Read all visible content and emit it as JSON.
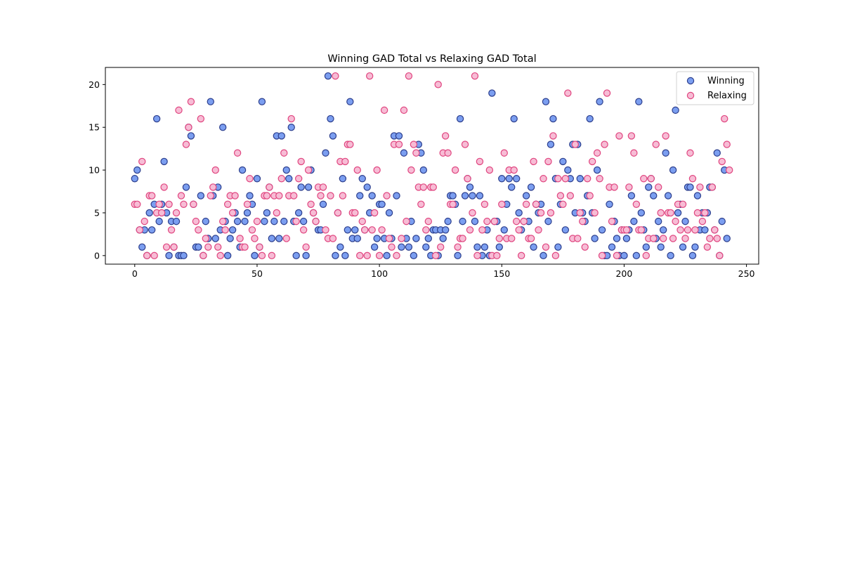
{
  "chart_data": {
    "type": "scatter",
    "title": "Winning GAD Total vs Relaxing GAD Total",
    "xlabel": "",
    "ylabel": "",
    "xlim": [
      -12,
      255
    ],
    "ylim": [
      -1,
      22
    ],
    "xticks": [
      0,
      50,
      100,
      150,
      200,
      250
    ],
    "yticks": [
      0,
      5,
      10,
      15,
      20
    ],
    "grid": false,
    "legend_position": "top-right",
    "series": [
      {
        "name": "Winning",
        "fill": "#7b9ef0",
        "edge": "#2c3e8c",
        "values": [
          9,
          10,
          3,
          1,
          3,
          0,
          5,
          3,
          6,
          16,
          4,
          6,
          11,
          5,
          0,
          4,
          1,
          4,
          0,
          0,
          0,
          8,
          15,
          14,
          6,
          1,
          1,
          7,
          0,
          4,
          2,
          18,
          7,
          2,
          8,
          3,
          15,
          4,
          0,
          2,
          3,
          5,
          4,
          1,
          10,
          4,
          5,
          7,
          6,
          0,
          9,
          1,
          18,
          4,
          5,
          8,
          2,
          4,
          14,
          2,
          14,
          4,
          10,
          9,
          15,
          4,
          0,
          5,
          8,
          4,
          0,
          8,
          10,
          5,
          4,
          3,
          3,
          6,
          12,
          21,
          16,
          14,
          0,
          5,
          1,
          9,
          0,
          3,
          18,
          2,
          3,
          2,
          7,
          9,
          3,
          8,
          5,
          7,
          1,
          2,
          6,
          6,
          2,
          0,
          5,
          2,
          14,
          7,
          14,
          1,
          12,
          2,
          1,
          4,
          0,
          2,
          13,
          12,
          10,
          1,
          2,
          0,
          3,
          3,
          0,
          3,
          2,
          3,
          4,
          7,
          7,
          6,
          0,
          16,
          4,
          7,
          9,
          8,
          7,
          4,
          1,
          7,
          0,
          1,
          3,
          0,
          19,
          4,
          4,
          1,
          9,
          3,
          6,
          9,
          8,
          16,
          9,
          5,
          3,
          4,
          7,
          4,
          8,
          1,
          6,
          5,
          6,
          0,
          18,
          4,
          13,
          16,
          9,
          1,
          6,
          11,
          3,
          10,
          9,
          13,
          5,
          13,
          9,
          5,
          4,
          7,
          16,
          5,
          2,
          10,
          18,
          3,
          0,
          0,
          6,
          1,
          4,
          2,
          0,
          3,
          0,
          2,
          3,
          7,
          4,
          0,
          18,
          5,
          3,
          1,
          8,
          9,
          7,
          2,
          4,
          1,
          3,
          12,
          7,
          0,
          10,
          17,
          5,
          6,
          1,
          4,
          8,
          8,
          0,
          1,
          7,
          3,
          5,
          3,
          5,
          8,
          8,
          3,
          12,
          0,
          4,
          10,
          2
        ]
      },
      {
        "name": "Relaxing",
        "fill": "#f7bcd5",
        "edge": "#e0457f",
        "values": [
          6,
          6,
          3,
          11,
          4,
          0,
          7,
          7,
          0,
          5,
          6,
          5,
          8,
          1,
          6,
          3,
          1,
          5,
          17,
          7,
          6,
          13,
          15,
          18,
          6,
          4,
          3,
          16,
          0,
          2,
          1,
          7,
          8,
          10,
          1,
          0,
          4,
          3,
          6,
          7,
          5,
          7,
          12,
          2,
          1,
          1,
          6,
          9,
          3,
          2,
          4,
          1,
          0,
          7,
          7,
          8,
          0,
          7,
          5,
          7,
          9,
          12,
          2,
          7,
          16,
          7,
          4,
          9,
          11,
          3,
          1,
          10,
          6,
          5,
          4,
          8,
          7,
          8,
          3,
          2,
          7,
          2,
          21,
          5,
          11,
          7,
          11,
          13,
          13,
          5,
          5,
          10,
          0,
          4,
          3,
          0,
          21,
          3,
          5,
          10,
          0,
          3,
          17,
          7,
          2,
          1,
          13,
          0,
          13,
          2,
          17,
          4,
          21,
          10,
          13,
          12,
          8,
          6,
          8,
          3,
          4,
          8,
          8,
          0,
          20,
          1,
          12,
          14,
          12,
          6,
          6,
          10,
          1,
          2,
          2,
          13,
          9,
          3,
          5,
          21,
          0,
          11,
          3,
          6,
          4,
          10,
          0,
          4,
          0,
          2,
          6,
          12,
          2,
          10,
          2,
          10,
          4,
          3,
          0,
          4,
          6,
          2,
          2,
          11,
          6,
          3,
          5,
          9,
          1,
          11,
          5,
          14,
          0,
          9,
          7,
          6,
          9,
          19,
          7,
          2,
          13,
          2,
          5,
          4,
          1,
          9,
          7,
          11,
          5,
          12,
          9,
          0,
          13,
          19,
          8,
          4,
          8,
          0,
          14,
          3,
          3,
          3,
          8,
          14,
          12,
          6,
          3,
          3,
          9,
          0,
          2,
          9,
          2,
          13,
          8,
          5,
          2,
          14,
          5,
          5,
          2,
          4,
          6,
          3,
          6,
          2,
          3,
          12,
          9,
          3,
          5,
          8,
          4,
          5,
          1,
          2,
          8,
          3,
          2,
          0,
          11,
          16,
          13,
          10
        ]
      }
    ]
  }
}
